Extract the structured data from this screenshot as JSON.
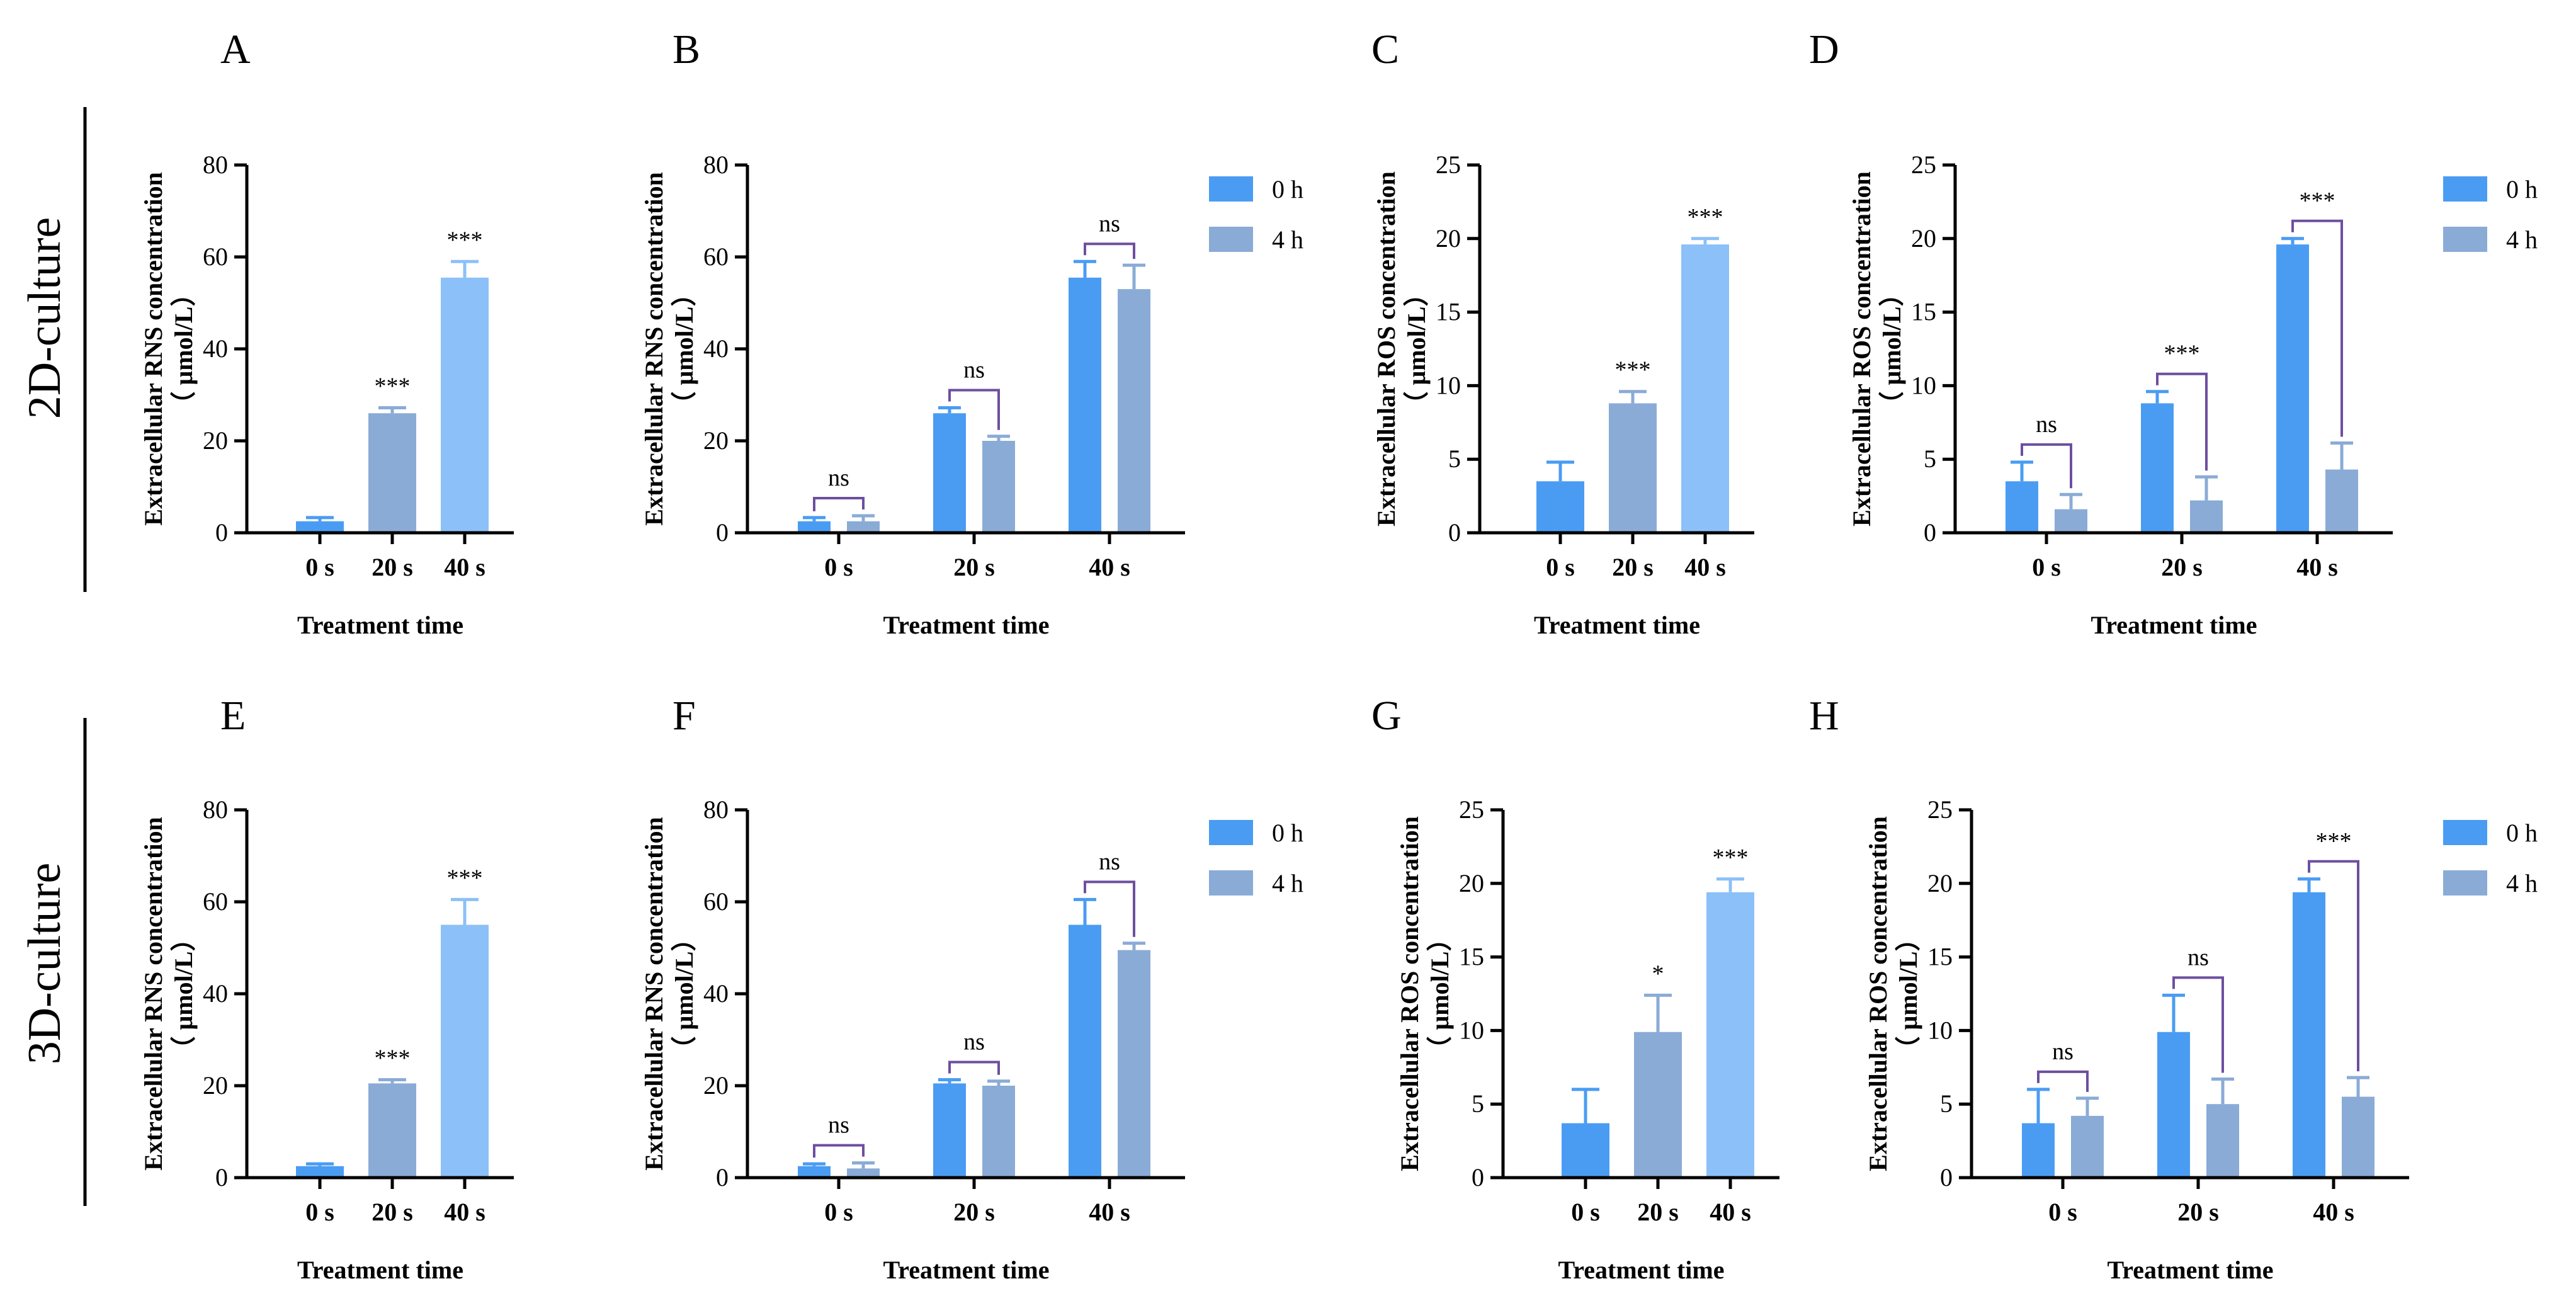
{
  "colors": {
    "blue": "#4a9cf3",
    "steel": "#8aabd6",
    "light": "#8cc0f8",
    "bracket": "#6d4fa0",
    "axis": "#000000"
  },
  "row_labels": [
    "2D-culture",
    "3D-culture"
  ],
  "chart_data": [
    {
      "panel": "A",
      "type": "bar",
      "grouped": false,
      "categories": [
        "0 s",
        "20 s",
        "40 s"
      ],
      "values": [
        2.5,
        26,
        55.5
      ],
      "errors": [
        0.8,
        1.2,
        3.5
      ],
      "bar_colors": [
        "#4a9cf3",
        "#8aabd6",
        "#8cc0f8"
      ],
      "sig": [
        "",
        "***",
        "***"
      ],
      "ylim": [
        0,
        80
      ],
      "yticks": [
        0,
        20,
        40,
        60,
        80
      ],
      "ylabel": [
        "Extracellular RNS concentration",
        "（ μmol/L）"
      ],
      "xlabel": "Treatment time"
    },
    {
      "panel": "B",
      "type": "bar",
      "grouped": true,
      "categories": [
        "0 s",
        "20 s",
        "40 s"
      ],
      "series": [
        {
          "name": "0 h",
          "values": [
            2.5,
            26,
            55.5
          ],
          "errors": [
            0.8,
            1.2,
            3.5
          ]
        },
        {
          "name": "4 h",
          "values": [
            2.5,
            20,
            53
          ],
          "errors": [
            1.2,
            1.0,
            5.2
          ]
        }
      ],
      "sig": [
        "ns",
        "ns",
        "ns"
      ],
      "ylim": [
        0,
        80
      ],
      "yticks": [
        0,
        20,
        40,
        60,
        80
      ],
      "ylabel": [
        "Extracellular RNS concentration",
        "（ μmol/L）"
      ],
      "xlabel": "Treatment time"
    },
    {
      "panel": "C",
      "type": "bar",
      "grouped": false,
      "categories": [
        "0 s",
        "20 s",
        "40 s"
      ],
      "values": [
        3.5,
        8.8,
        19.6
      ],
      "errors": [
        1.3,
        0.8,
        0.4
      ],
      "bar_colors": [
        "#4a9cf3",
        "#8aabd6",
        "#8cc0f8"
      ],
      "sig": [
        "",
        "***",
        "***"
      ],
      "ylim": [
        0,
        25
      ],
      "yticks": [
        0,
        5,
        10,
        15,
        20,
        25
      ],
      "ylabel": [
        "Extracellular ROS concentration",
        "（ μmol/L）"
      ],
      "xlabel": "Treatment time"
    },
    {
      "panel": "D",
      "type": "bar",
      "grouped": true,
      "categories": [
        "0 s",
        "20 s",
        "40 s"
      ],
      "series": [
        {
          "name": "0 h",
          "values": [
            3.5,
            8.8,
            19.6
          ],
          "errors": [
            1.3,
            0.8,
            0.4
          ]
        },
        {
          "name": "4 h",
          "values": [
            1.6,
            2.2,
            4.3
          ],
          "errors": [
            1.0,
            1.6,
            1.8
          ]
        }
      ],
      "sig": [
        "ns",
        "***",
        "***"
      ],
      "ylim": [
        0,
        25
      ],
      "yticks": [
        0,
        5,
        10,
        15,
        20,
        25
      ],
      "ylabel": [
        "Extracellular ROS concentration",
        "（ μmol/L）"
      ],
      "xlabel": "Treatment time"
    },
    {
      "panel": "E",
      "type": "bar",
      "grouped": false,
      "categories": [
        "0 s",
        "20 s",
        "40 s"
      ],
      "values": [
        2.5,
        20.5,
        55
      ],
      "errors": [
        0.5,
        0.8,
        5.5
      ],
      "bar_colors": [
        "#4a9cf3",
        "#8aabd6",
        "#8cc0f8"
      ],
      "sig": [
        "",
        "***",
        "***"
      ],
      "ylim": [
        0,
        80
      ],
      "yticks": [
        0,
        20,
        40,
        60,
        80
      ],
      "ylabel": [
        "Extracellular RNS concentration",
        "（ μmol/L）"
      ],
      "xlabel": "Treatment time"
    },
    {
      "panel": "F",
      "type": "bar",
      "grouped": true,
      "categories": [
        "0 s",
        "20 s",
        "40 s"
      ],
      "series": [
        {
          "name": "0 h",
          "values": [
            2.5,
            20.5,
            55
          ],
          "errors": [
            0.5,
            0.8,
            5.5
          ]
        },
        {
          "name": "4 h",
          "values": [
            2.0,
            20,
            49.5
          ],
          "errors": [
            1.2,
            1.0,
            1.5
          ]
        }
      ],
      "sig": [
        "ns",
        "ns",
        "ns"
      ],
      "ylim": [
        0,
        80
      ],
      "yticks": [
        0,
        20,
        40,
        60,
        80
      ],
      "ylabel": [
        "Extracellular RNS concentration",
        "（ μmol/L）"
      ],
      "xlabel": "Treatment time"
    },
    {
      "panel": "G",
      "type": "bar",
      "grouped": false,
      "categories": [
        "0 s",
        "20 s",
        "40 s"
      ],
      "values": [
        3.7,
        9.9,
        19.4
      ],
      "errors": [
        2.3,
        2.5,
        0.9
      ],
      "bar_colors": [
        "#4a9cf3",
        "#8aabd6",
        "#8cc0f8"
      ],
      "sig": [
        "",
        "*",
        "***"
      ],
      "ylim": [
        0,
        25
      ],
      "yticks": [
        0,
        5,
        10,
        15,
        20,
        25
      ],
      "ylabel": [
        "Extracellular ROS concentration",
        "（ μmol/L）"
      ],
      "xlabel": "Treatment time"
    },
    {
      "panel": "H",
      "type": "bar",
      "grouped": true,
      "categories": [
        "0 s",
        "20 s",
        "40 s"
      ],
      "series": [
        {
          "name": "0 h",
          "values": [
            3.7,
            9.9,
            19.4
          ],
          "errors": [
            2.3,
            2.5,
            0.9
          ]
        },
        {
          "name": "4 h",
          "values": [
            4.2,
            5.0,
            5.5
          ],
          "errors": [
            1.2,
            1.7,
            1.3
          ]
        }
      ],
      "sig": [
        "ns",
        "ns",
        "***"
      ],
      "ylim": [
        0,
        25
      ],
      "yticks": [
        0,
        5,
        10,
        15,
        20,
        25
      ],
      "ylabel": [
        "Extracellular ROS concentration",
        "（ μmol/L）"
      ],
      "xlabel": "Treatment time"
    }
  ]
}
